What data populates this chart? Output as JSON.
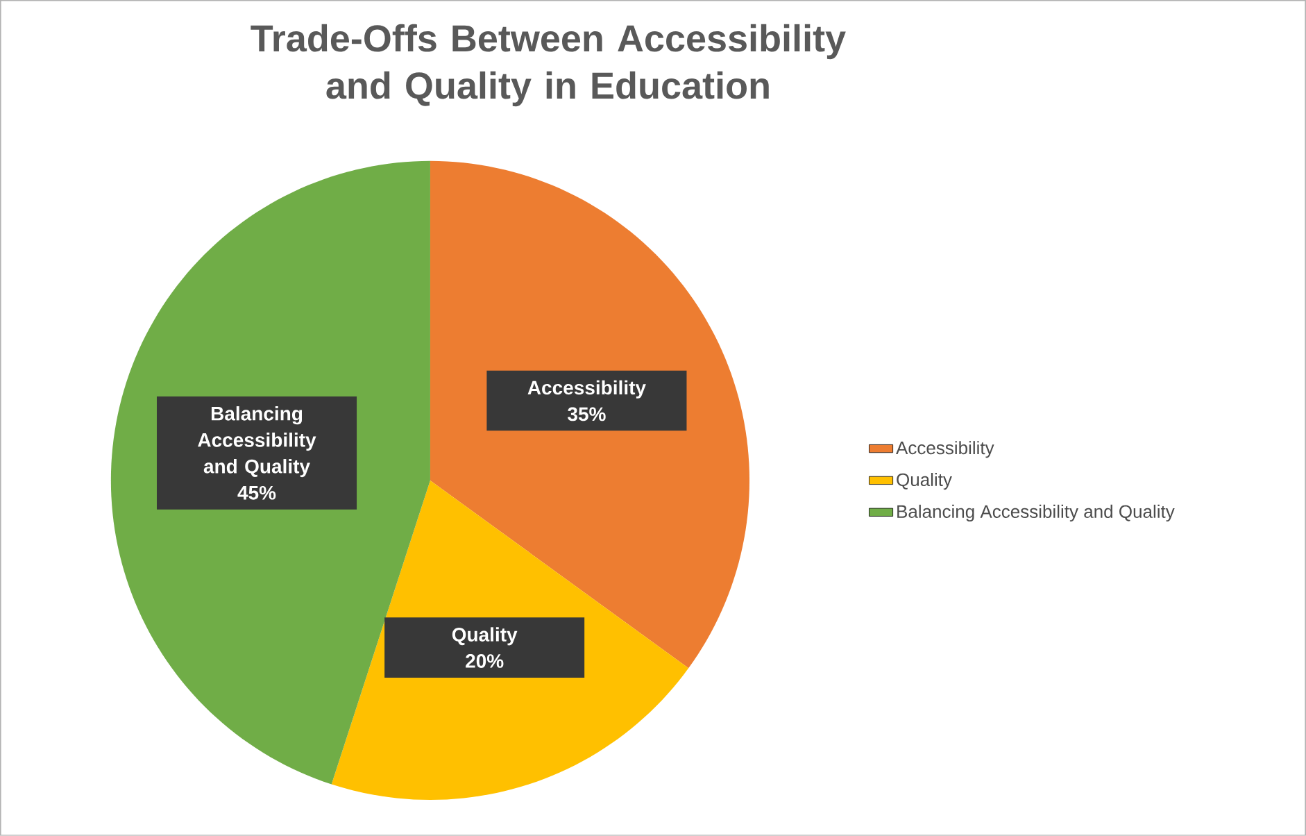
{
  "chart_data": {
    "type": "pie",
    "title": "Trade-Offs Between Accessibility and Quality in Education",
    "categories": [
      "Accessibility",
      "Quality",
      "Balancing Accessibility and Quality"
    ],
    "values": [
      35,
      20,
      45
    ],
    "value_labels": [
      "35%",
      "20%",
      "45%"
    ],
    "colors": [
      "#ed7d31",
      "#ffc000",
      "#70ad47"
    ],
    "legend": "right"
  }
}
